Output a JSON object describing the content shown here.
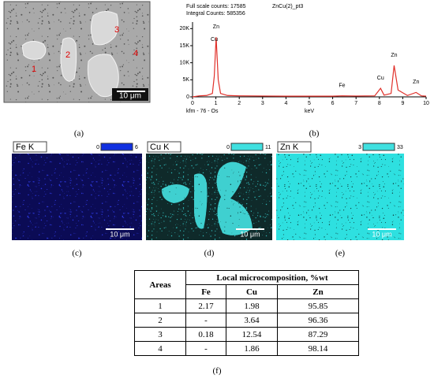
{
  "sem_image": {
    "labels": [
      "1",
      "2",
      "3",
      "4"
    ],
    "scale_bar": "10 μm",
    "caption": "(a)"
  },
  "chart_data": {
    "type": "line",
    "header_lines": [
      "Full scale counts: 17585",
      "Integral Counts: 585356"
    ],
    "title": "ZnCu(2)_pt3",
    "footer": "kfm - 76 - Os",
    "xlabel": "keV",
    "caption": "(b)",
    "color": "#e0302a",
    "x": [
      0,
      0.3,
      0.6,
      0.85,
      0.93,
      1.01,
      1.1,
      1.2,
      1.5,
      2,
      3,
      4,
      5,
      6,
      6.4,
      7,
      7.8,
      8.05,
      8.2,
      8.5,
      8.63,
      8.8,
      9.2,
      9.57,
      9.8,
      10
    ],
    "values": [
      0,
      300,
      400,
      1000,
      6000,
      17500,
      5000,
      1000,
      400,
      300,
      250,
      200,
      200,
      200,
      300,
      250,
      300,
      2500,
      500,
      1000,
      9200,
      2000,
      400,
      1300,
      300,
      200
    ],
    "peaks": [
      {
        "label": "Zn",
        "x": 1.01
      },
      {
        "label": "Cu",
        "x": 0.93
      },
      {
        "label": "Fe",
        "x": 6.4
      },
      {
        "label": "Cu",
        "x": 8.05
      },
      {
        "label": "Zn",
        "x": 8.63
      },
      {
        "label": "Zn",
        "x": 9.57
      }
    ],
    "xlim": [
      0,
      10
    ],
    "xticks": [
      0,
      1,
      2,
      3,
      4,
      5,
      6,
      7,
      8,
      9,
      10
    ],
    "ylim": [
      0,
      21000
    ],
    "yticks": [
      0,
      {
        "value": 5000,
        "label": "5K"
      },
      {
        "value": 10000,
        "label": "10K"
      },
      {
        "value": 15000,
        "label": "15K"
      },
      {
        "value": 20000,
        "label": "20K"
      }
    ]
  },
  "maps": [
    {
      "element": "Fe K",
      "min": 0,
      "max": 6,
      "scale_bar": "10 μm",
      "caption": "(c)"
    },
    {
      "element": "Cu K",
      "min": 0,
      "max": 11,
      "scale_bar": "10 μm",
      "caption": "(d)"
    },
    {
      "element": "Zn K",
      "min": 3,
      "max": 33,
      "scale_bar": "10 μm",
      "caption": "(e)"
    }
  ],
  "table": {
    "header": [
      "Areas",
      "Local microcomposition, %wt"
    ],
    "subheader": [
      "Fe",
      "Cu",
      "Zn"
    ],
    "rows": [
      [
        "1",
        "2.17",
        "1.98",
        "95.85"
      ],
      [
        "2",
        "-",
        "3.64",
        "96.36"
      ],
      [
        "3",
        "0.18",
        "12.54",
        "87.29"
      ],
      [
        "4",
        "-",
        "1.86",
        "98.14"
      ]
    ],
    "caption": "(f)"
  }
}
